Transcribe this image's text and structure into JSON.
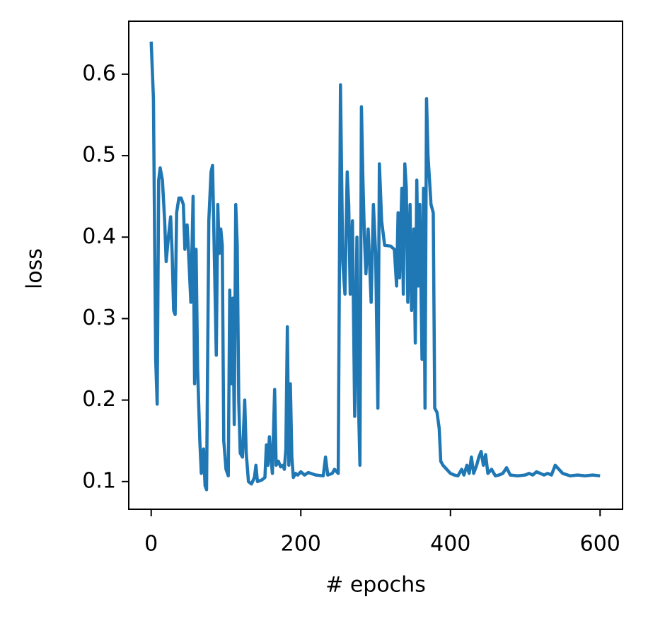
{
  "chart_data": {
    "type": "line",
    "xlabel": "# epochs",
    "ylabel": "loss",
    "xlim": [
      -30,
      630
    ],
    "ylim": [
      0.066,
      0.665
    ],
    "xticks": [
      0,
      200,
      400,
      600
    ],
    "yticks": [
      0.1,
      0.2,
      0.3,
      0.4,
      0.5,
      0.6
    ],
    "series": [
      {
        "color": "#1f77b4",
        "x": [
          0,
          3,
          6,
          8,
          10,
          12,
          15,
          18,
          20,
          23,
          26,
          28,
          30,
          32,
          34,
          37,
          40,
          43,
          45,
          48,
          50,
          53,
          56,
          58,
          60,
          62,
          65,
          67,
          70,
          72,
          74,
          77,
          80,
          82,
          85,
          87,
          89,
          91,
          93,
          95,
          97,
          100,
          103,
          105,
          107,
          109,
          111,
          113,
          115,
          117,
          119,
          122,
          125,
          127,
          130,
          134,
          138,
          140,
          142,
          148,
          152,
          154,
          156,
          158,
          160,
          162,
          165,
          167,
          170,
          173,
          176,
          178,
          180,
          182,
          184,
          186,
          188,
          190,
          193,
          196,
          200,
          205,
          210,
          220,
          230,
          233,
          236,
          242,
          245,
          250,
          253,
          256,
          259,
          262,
          264,
          266,
          269,
          272,
          275,
          277,
          279,
          281,
          283,
          285,
          287,
          290,
          294,
          297,
          300,
          303,
          305,
          308,
          312,
          320,
          325,
          328,
          330,
          332,
          335,
          337,
          339,
          341,
          343,
          346,
          348,
          351,
          353,
          355,
          357,
          359,
          362,
          364,
          366,
          368,
          370,
          374,
          377,
          379,
          382,
          385,
          387,
          390,
          395,
          400,
          405,
          410,
          415,
          418,
          422,
          425,
          428,
          431,
          435,
          438,
          441,
          444,
          447,
          450,
          455,
          460,
          465,
          470,
          475,
          480,
          490,
          500,
          505,
          510,
          515,
          520,
          525,
          530,
          535,
          540,
          545,
          550,
          560,
          570,
          580,
          590,
          600
        ],
        "values": [
          0.64,
          0.57,
          0.25,
          0.195,
          0.47,
          0.485,
          0.47,
          0.42,
          0.37,
          0.4,
          0.425,
          0.38,
          0.31,
          0.305,
          0.43,
          0.448,
          0.448,
          0.44,
          0.385,
          0.415,
          0.38,
          0.32,
          0.45,
          0.22,
          0.385,
          0.24,
          0.15,
          0.11,
          0.14,
          0.095,
          0.09,
          0.42,
          0.48,
          0.488,
          0.35,
          0.255,
          0.44,
          0.38,
          0.41,
          0.39,
          0.15,
          0.115,
          0.107,
          0.335,
          0.22,
          0.325,
          0.17,
          0.44,
          0.39,
          0.2,
          0.135,
          0.13,
          0.2,
          0.135,
          0.1,
          0.097,
          0.105,
          0.12,
          0.1,
          0.102,
          0.105,
          0.145,
          0.12,
          0.155,
          0.13,
          0.11,
          0.213,
          0.12,
          0.125,
          0.118,
          0.12,
          0.115,
          0.14,
          0.29,
          0.12,
          0.22,
          0.13,
          0.105,
          0.11,
          0.108,
          0.112,
          0.108,
          0.111,
          0.108,
          0.107,
          0.13,
          0.108,
          0.11,
          0.115,
          0.11,
          0.587,
          0.37,
          0.33,
          0.48,
          0.44,
          0.33,
          0.42,
          0.18,
          0.4,
          0.2,
          0.12,
          0.56,
          0.47,
          0.4,
          0.355,
          0.41,
          0.32,
          0.44,
          0.38,
          0.19,
          0.49,
          0.42,
          0.39,
          0.389,
          0.385,
          0.34,
          0.43,
          0.35,
          0.46,
          0.33,
          0.49,
          0.46,
          0.32,
          0.44,
          0.31,
          0.41,
          0.27,
          0.47,
          0.34,
          0.44,
          0.25,
          0.46,
          0.19,
          0.57,
          0.5,
          0.44,
          0.43,
          0.19,
          0.185,
          0.165,
          0.125,
          0.12,
          0.115,
          0.11,
          0.108,
          0.107,
          0.115,
          0.108,
          0.12,
          0.11,
          0.13,
          0.11,
          0.12,
          0.13,
          0.137,
          0.12,
          0.133,
          0.11,
          0.115,
          0.107,
          0.108,
          0.11,
          0.117,
          0.108,
          0.107,
          0.108,
          0.11,
          0.108,
          0.112,
          0.11,
          0.108,
          0.11,
          0.108,
          0.12,
          0.115,
          0.11,
          0.107,
          0.108,
          0.107,
          0.108,
          0.107
        ]
      }
    ]
  }
}
